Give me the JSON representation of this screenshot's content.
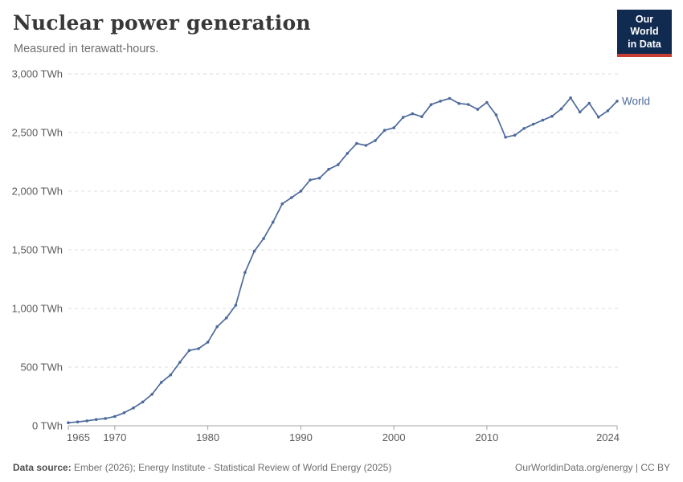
{
  "header": {
    "title": "Nuclear power generation",
    "subtitle": "Measured in terawatt-hours."
  },
  "logo": {
    "line1": "Our World",
    "line2": "in Data"
  },
  "footer": {
    "source_label": "Data source:",
    "source_text": " Ember (2026); Energy Institute - Statistical Review of World Energy (2025)",
    "credit": "OurWorldinData.org/energy | CC BY"
  },
  "colors": {
    "line": "#4C6A9C",
    "grid": "#dcdcdc",
    "axis": "#a3a3a3",
    "tick_label": "#5b5b5b",
    "logo_bg": "#102A50",
    "logo_bar": "#C63D33"
  },
  "chart_data": {
    "type": "line",
    "title": "Nuclear power generation",
    "subtitle": "Measured in terawatt-hours.",
    "xlabel": "",
    "ylabel": "TWh",
    "xlim": [
      1965,
      2024
    ],
    "ylim": [
      0,
      3000
    ],
    "x_ticks": [
      1965,
      1970,
      1980,
      1990,
      2000,
      2010,
      2024
    ],
    "y_ticks": [
      0,
      500,
      1000,
      1500,
      2000,
      2500,
      3000
    ],
    "y_tick_suffix": " TWh",
    "grid": true,
    "legend_position": "end-of-line",
    "series": [
      {
        "name": "World",
        "x": [
          1965,
          1966,
          1967,
          1968,
          1969,
          1970,
          1971,
          1972,
          1973,
          1974,
          1975,
          1976,
          1977,
          1978,
          1979,
          1980,
          1981,
          1982,
          1983,
          1984,
          1985,
          1986,
          1987,
          1988,
          1989,
          1990,
          1991,
          1992,
          1993,
          1994,
          1995,
          1996,
          1997,
          1998,
          1999,
          2000,
          2001,
          2002,
          2003,
          2004,
          2005,
          2006,
          2007,
          2008,
          2009,
          2010,
          2011,
          2012,
          2013,
          2014,
          2015,
          2016,
          2017,
          2018,
          2019,
          2020,
          2021,
          2022,
          2023,
          2024
        ],
        "values": [
          25.7,
          32.7,
          42.0,
          53.5,
          62.0,
          79.3,
          111.1,
          152.3,
          203.0,
          268.3,
          370.3,
          433.8,
          541.6,
          642.2,
          657.7,
          712.9,
          844.5,
          919.7,
          1027.9,
          1306.7,
          1488.8,
          1596.5,
          1735.9,
          1892.7,
          1945.0,
          2000.5,
          2096.1,
          2111.6,
          2187.3,
          2225.5,
          2322.5,
          2406.6,
          2390.7,
          2431.8,
          2519.3,
          2540.4,
          2629.3,
          2660.6,
          2635.3,
          2738.5,
          2767.9,
          2790.9,
          2748.0,
          2739.7,
          2697.8,
          2756.3,
          2649.8,
          2460.5,
          2477.6,
          2534.8,
          2570.9,
          2605.6,
          2638.7,
          2701.4,
          2795.9,
          2674.8,
          2749.8,
          2631.7,
          2685.7,
          2767.8
        ]
      }
    ]
  }
}
